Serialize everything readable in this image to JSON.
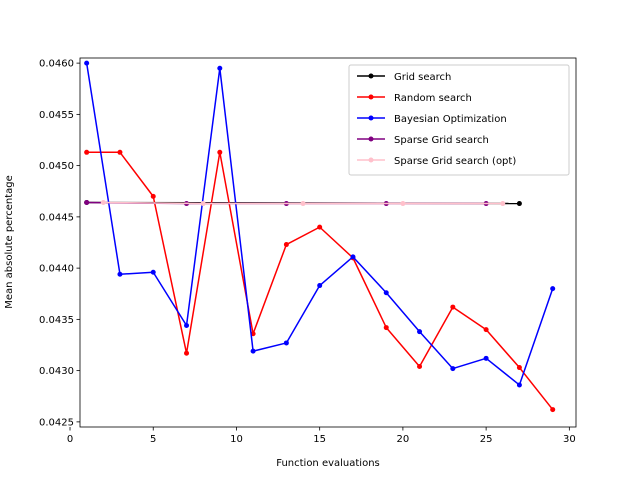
{
  "chart_data": {
    "type": "line",
    "title": "",
    "xlabel": "Function evaluations",
    "ylabel": "Mean absolute percentage",
    "xlim": [
      0.6,
      30.4
    ],
    "ylim": [
      0.04245,
      0.04605
    ],
    "xticks": [
      0,
      5,
      10,
      15,
      20,
      25,
      30
    ],
    "xtick_labels": [
      "0",
      "5",
      "10",
      "15",
      "20",
      "25",
      "30"
    ],
    "yticks": [
      0.0425,
      0.043,
      0.0435,
      0.044,
      0.0445,
      0.045,
      0.0455,
      0.046
    ],
    "ytick_labels": [
      "0.0425",
      "0.0430",
      "0.0435",
      "0.0440",
      "0.0445",
      "0.0450",
      "0.0455",
      "0.0460"
    ],
    "grid": false,
    "legend_position": "top-right",
    "series": [
      {
        "name": "Grid search",
        "color": "#000000",
        "x": [
          1,
          27
        ],
        "y": [
          0.04464,
          0.04463
        ]
      },
      {
        "name": "Random search",
        "color": "#ff0000",
        "x": [
          1,
          3,
          5,
          7,
          9,
          11,
          13,
          15,
          17,
          19,
          21,
          23,
          25,
          27,
          29
        ],
        "y": [
          0.04513,
          0.04513,
          0.0447,
          0.04317,
          0.04513,
          0.04336,
          0.04423,
          0.0444,
          0.0441,
          0.04342,
          0.04304,
          0.04362,
          0.0434,
          0.04303,
          0.04262
        ]
      },
      {
        "name": "Bayesian Optimization",
        "color": "#0000ff",
        "x": [
          1,
          3,
          5,
          7,
          9,
          11,
          13,
          15,
          17,
          19,
          21,
          23,
          25,
          27,
          29
        ],
        "y": [
          0.046,
          0.04394,
          0.04396,
          0.04344,
          0.04595,
          0.04319,
          0.04327,
          0.04383,
          0.04411,
          0.04376,
          0.04338,
          0.04302,
          0.04312,
          0.04286,
          0.0438
        ]
      },
      {
        "name": "Sparse Grid search",
        "color": "#800080",
        "x": [
          1,
          7,
          13,
          19,
          25
        ],
        "y": [
          0.04464,
          0.04463,
          0.04463,
          0.04463,
          0.04463
        ]
      },
      {
        "name": "Sparse Grid search (opt)",
        "color": "#ffc0cb",
        "x": [
          2,
          8,
          14,
          20,
          26
        ],
        "y": [
          0.04464,
          0.04463,
          0.04463,
          0.04463,
          0.04463
        ]
      }
    ]
  }
}
